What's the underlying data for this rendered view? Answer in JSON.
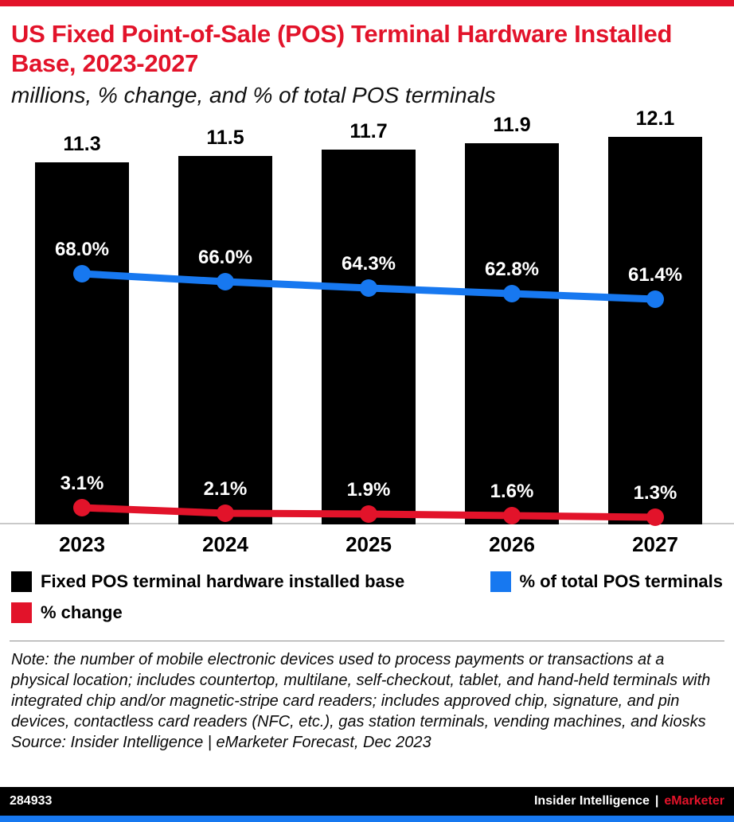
{
  "header": {
    "title": "US Fixed Point-of-Sale (POS) Terminal Hardware Installed Base, 2023-2027",
    "subtitle": "millions, % change, and % of total POS terminals"
  },
  "colors": {
    "accent_red": "#e2132a",
    "line_blue": "#1778f0",
    "bar_black": "#000000",
    "footer_black": "#000000",
    "strip_blue": "#1778f0"
  },
  "chart_data": {
    "type": "bar",
    "categories": [
      "2023",
      "2024",
      "2025",
      "2026",
      "2027"
    ],
    "series": [
      {
        "name": "Fixed POS terminal hardware installed base",
        "type": "bar",
        "color": "#000000",
        "unit": "millions",
        "values": [
          11.3,
          11.5,
          11.7,
          11.9,
          12.1
        ],
        "labels": [
          "11.3",
          "11.5",
          "11.7",
          "11.9",
          "12.1"
        ]
      },
      {
        "name": "% of total POS terminals",
        "type": "line",
        "color": "#1778f0",
        "unit": "%",
        "values": [
          68.0,
          66.0,
          64.3,
          62.8,
          61.4
        ],
        "labels": [
          "68.0%",
          "66.0%",
          "64.3%",
          "62.8%",
          "61.4%"
        ]
      },
      {
        "name": "% change",
        "type": "line",
        "color": "#e2132a",
        "unit": "%",
        "values": [
          3.1,
          2.1,
          1.9,
          1.6,
          1.3
        ],
        "labels": [
          "3.1%",
          "2.1%",
          "1.9%",
          "1.6%",
          "1.3%"
        ]
      }
    ],
    "title": "US Fixed Point-of-Sale (POS) Terminal Hardware Installed Base, 2023-2027",
    "xlabel": "",
    "ylabel": "millions",
    "grid": false,
    "legend_position": "bottom"
  },
  "legend": {
    "items": [
      {
        "label": "Fixed POS terminal hardware installed base",
        "color": "#000000"
      },
      {
        "label": "% of total POS terminals",
        "color": "#1778f0"
      },
      {
        "label": "% change",
        "color": "#e2132a"
      }
    ]
  },
  "note": {
    "text": "Note: the number of mobile electronic devices used to process payments or transactions at a physical location; includes countertop, multilane, self-checkout, tablet, and hand-held terminals with integrated chip and/or magnetic-stripe card readers; includes approved chip, signature, and pin devices, contactless card readers (NFC, etc.), gas station terminals, vending machines, and kiosks",
    "source": "Source: Insider Intelligence | eMarketer Forecast, Dec 2023"
  },
  "footer": {
    "chart_id": "284933",
    "brand_left": "Insider Intelligence",
    "separator": "|",
    "brand_right": "eMarketer"
  }
}
